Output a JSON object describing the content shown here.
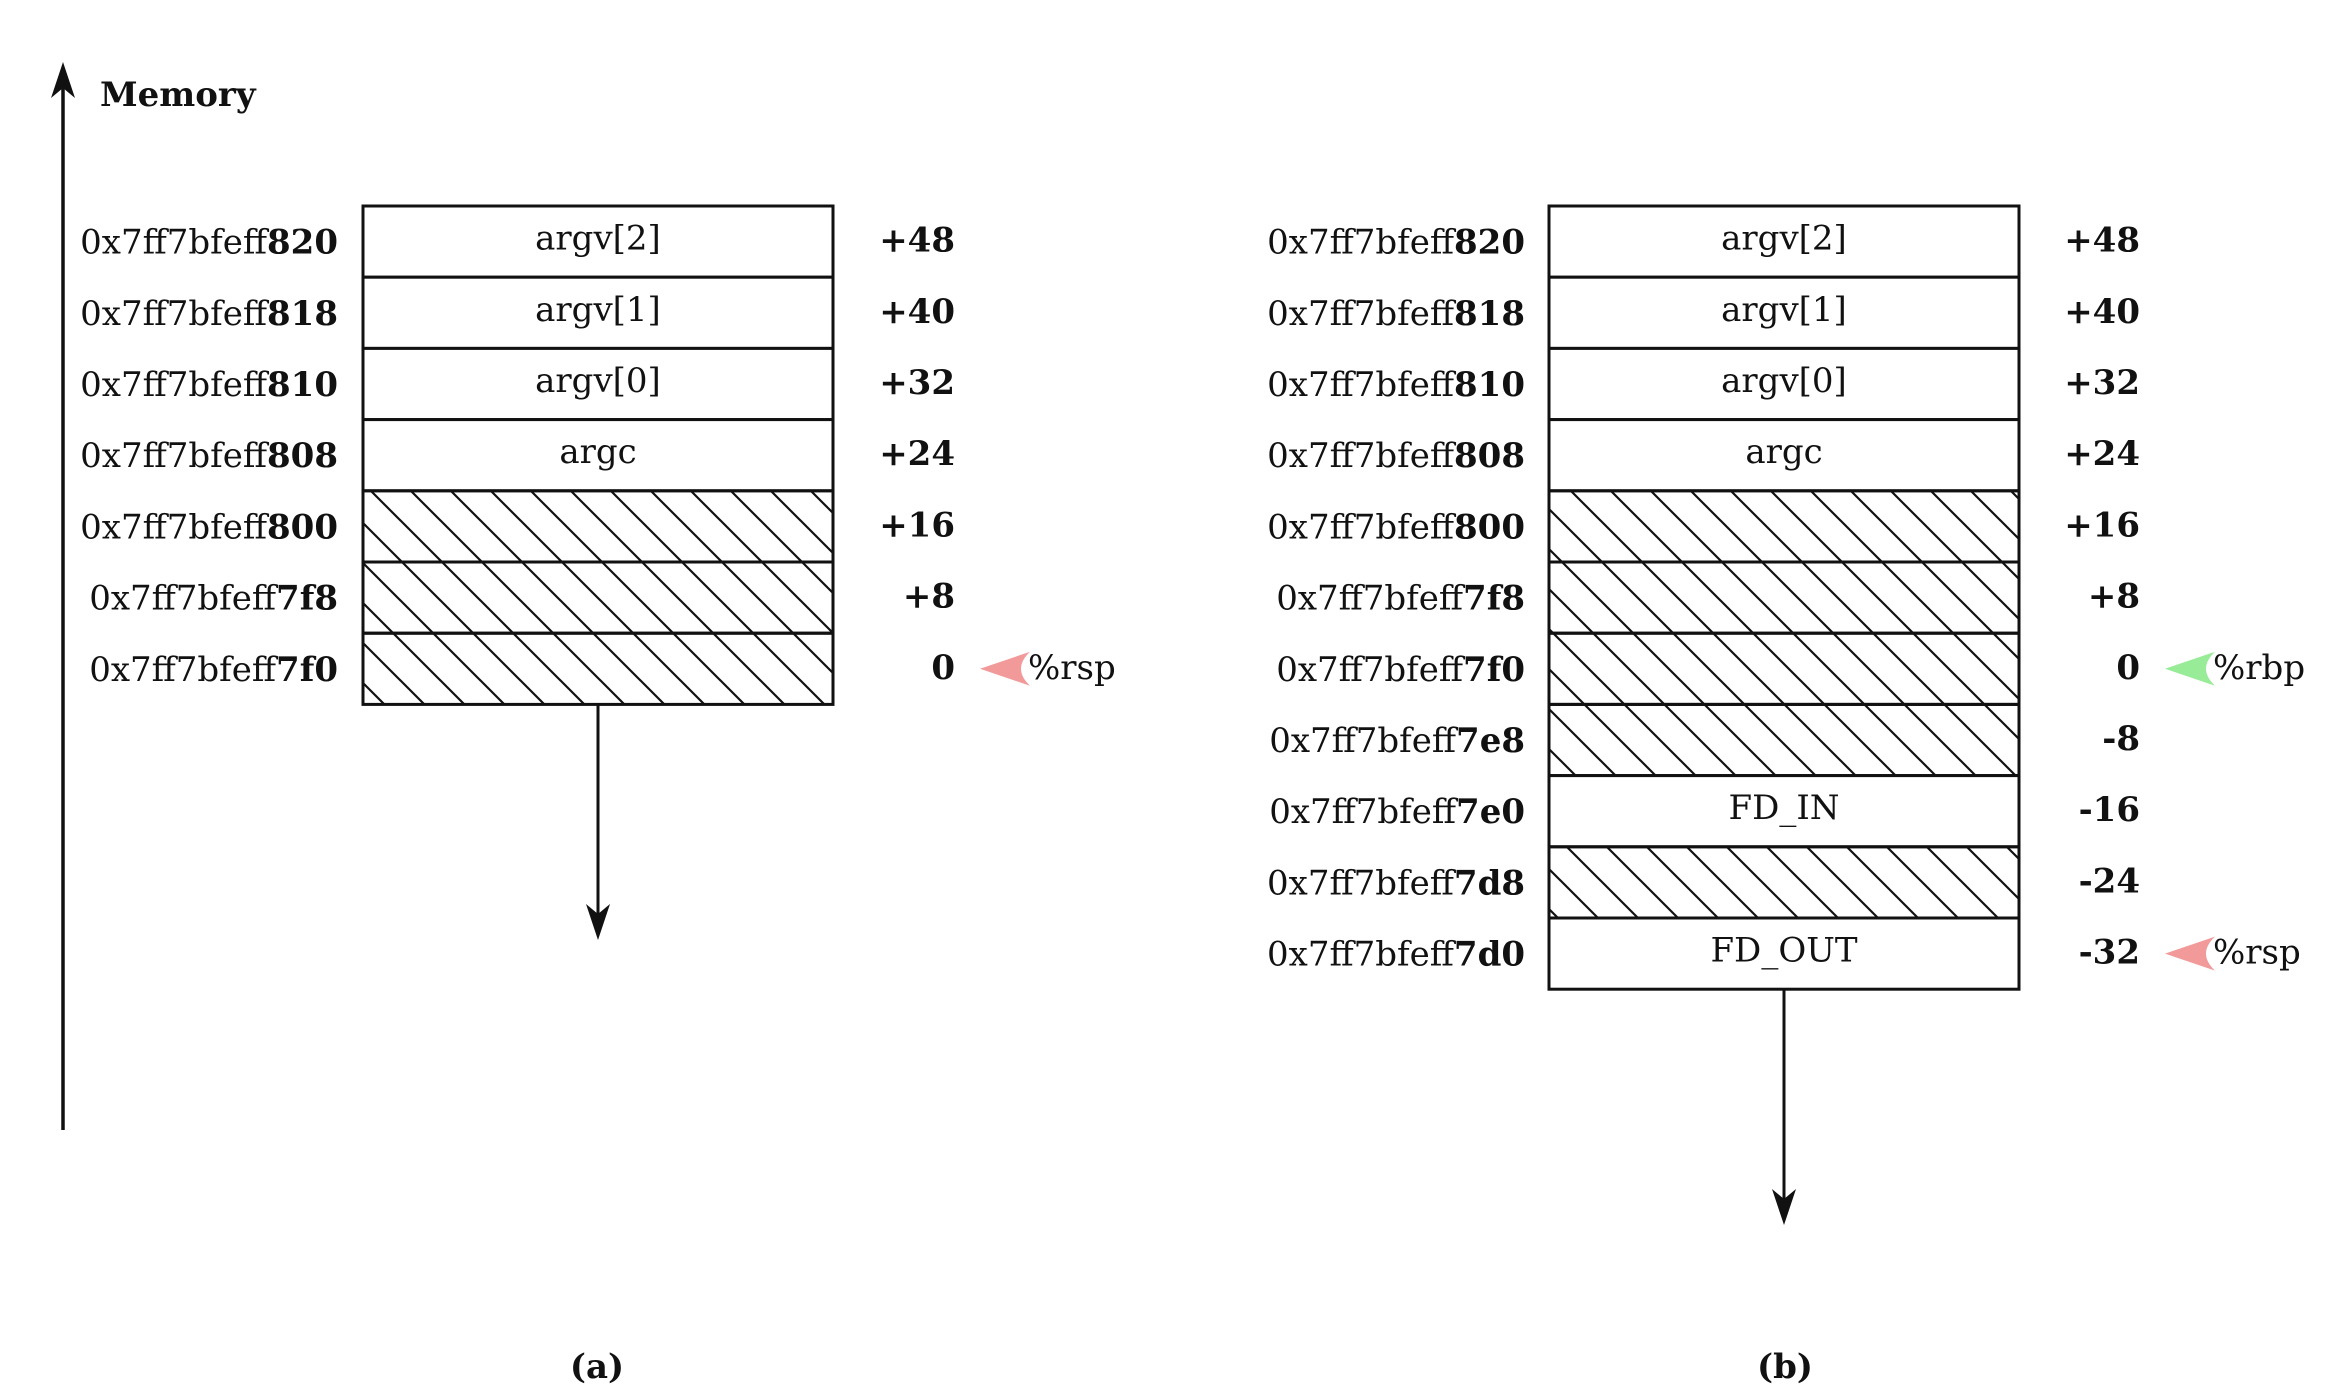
{
  "memory_label": "Memory",
  "colors": {
    "rsp_pointer": "#f29a9a",
    "rbp_pointer": "#98ec98",
    "line": "#111111"
  },
  "panels": [
    {
      "caption": "(a)",
      "rows": [
        {
          "addr_prefix": "0x7ff7bfeff",
          "addr_suffix": "820",
          "content": "argv[2]",
          "hatched": false,
          "offset": "+48"
        },
        {
          "addr_prefix": "0x7ff7bfeff",
          "addr_suffix": "818",
          "content": "argv[1]",
          "hatched": false,
          "offset": "+40"
        },
        {
          "addr_prefix": "0x7ff7bfeff",
          "addr_suffix": "810",
          "content": "argv[0]",
          "hatched": false,
          "offset": "+32"
        },
        {
          "addr_prefix": "0x7ff7bfeff",
          "addr_suffix": "808",
          "content": "argc",
          "hatched": false,
          "offset": "+24"
        },
        {
          "addr_prefix": "0x7ff7bfeff",
          "addr_suffix": "800",
          "content": "",
          "hatched": true,
          "offset": "+16"
        },
        {
          "addr_prefix": "0x7ff7bfeff",
          "addr_suffix": "7f8",
          "content": "",
          "hatched": true,
          "offset": "+8"
        },
        {
          "addr_prefix": "0x7ff7bfeff",
          "addr_suffix": "7f0",
          "content": "",
          "hatched": true,
          "offset": "0",
          "pointer": {
            "label": "%rsp",
            "color": "rsp"
          }
        }
      ]
    },
    {
      "caption": "(b)",
      "rows": [
        {
          "addr_prefix": "0x7ff7bfeff",
          "addr_suffix": "820",
          "content": "argv[2]",
          "hatched": false,
          "offset": "+48"
        },
        {
          "addr_prefix": "0x7ff7bfeff",
          "addr_suffix": "818",
          "content": "argv[1]",
          "hatched": false,
          "offset": "+40"
        },
        {
          "addr_prefix": "0x7ff7bfeff",
          "addr_suffix": "810",
          "content": "argv[0]",
          "hatched": false,
          "offset": "+32"
        },
        {
          "addr_prefix": "0x7ff7bfeff",
          "addr_suffix": "808",
          "content": "argc",
          "hatched": false,
          "offset": "+24"
        },
        {
          "addr_prefix": "0x7ff7bfeff",
          "addr_suffix": "800",
          "content": "",
          "hatched": true,
          "offset": "+16"
        },
        {
          "addr_prefix": "0x7ff7bfeff",
          "addr_suffix": "7f8",
          "content": "",
          "hatched": true,
          "offset": "+8"
        },
        {
          "addr_prefix": "0x7ff7bfeff",
          "addr_suffix": "7f0",
          "content": "",
          "hatched": true,
          "offset": "0",
          "pointer": {
            "label": "%rbp",
            "color": "rbp"
          }
        },
        {
          "addr_prefix": "0x7ff7bfeff",
          "addr_suffix": "7e8",
          "content": "",
          "hatched": true,
          "offset": "-8"
        },
        {
          "addr_prefix": "0x7ff7bfeff",
          "addr_suffix": "7e0",
          "content": "FD_IN",
          "hatched": false,
          "offset": "-16"
        },
        {
          "addr_prefix": "0x7ff7bfeff",
          "addr_suffix": "7d8",
          "content": "",
          "hatched": true,
          "offset": "-24"
        },
        {
          "addr_prefix": "0x7ff7bfeff",
          "addr_suffix": "7d0",
          "content": "FD_OUT",
          "hatched": false,
          "offset": "-32",
          "pointer": {
            "label": "%rsp",
            "color": "rsp"
          }
        }
      ]
    }
  ]
}
